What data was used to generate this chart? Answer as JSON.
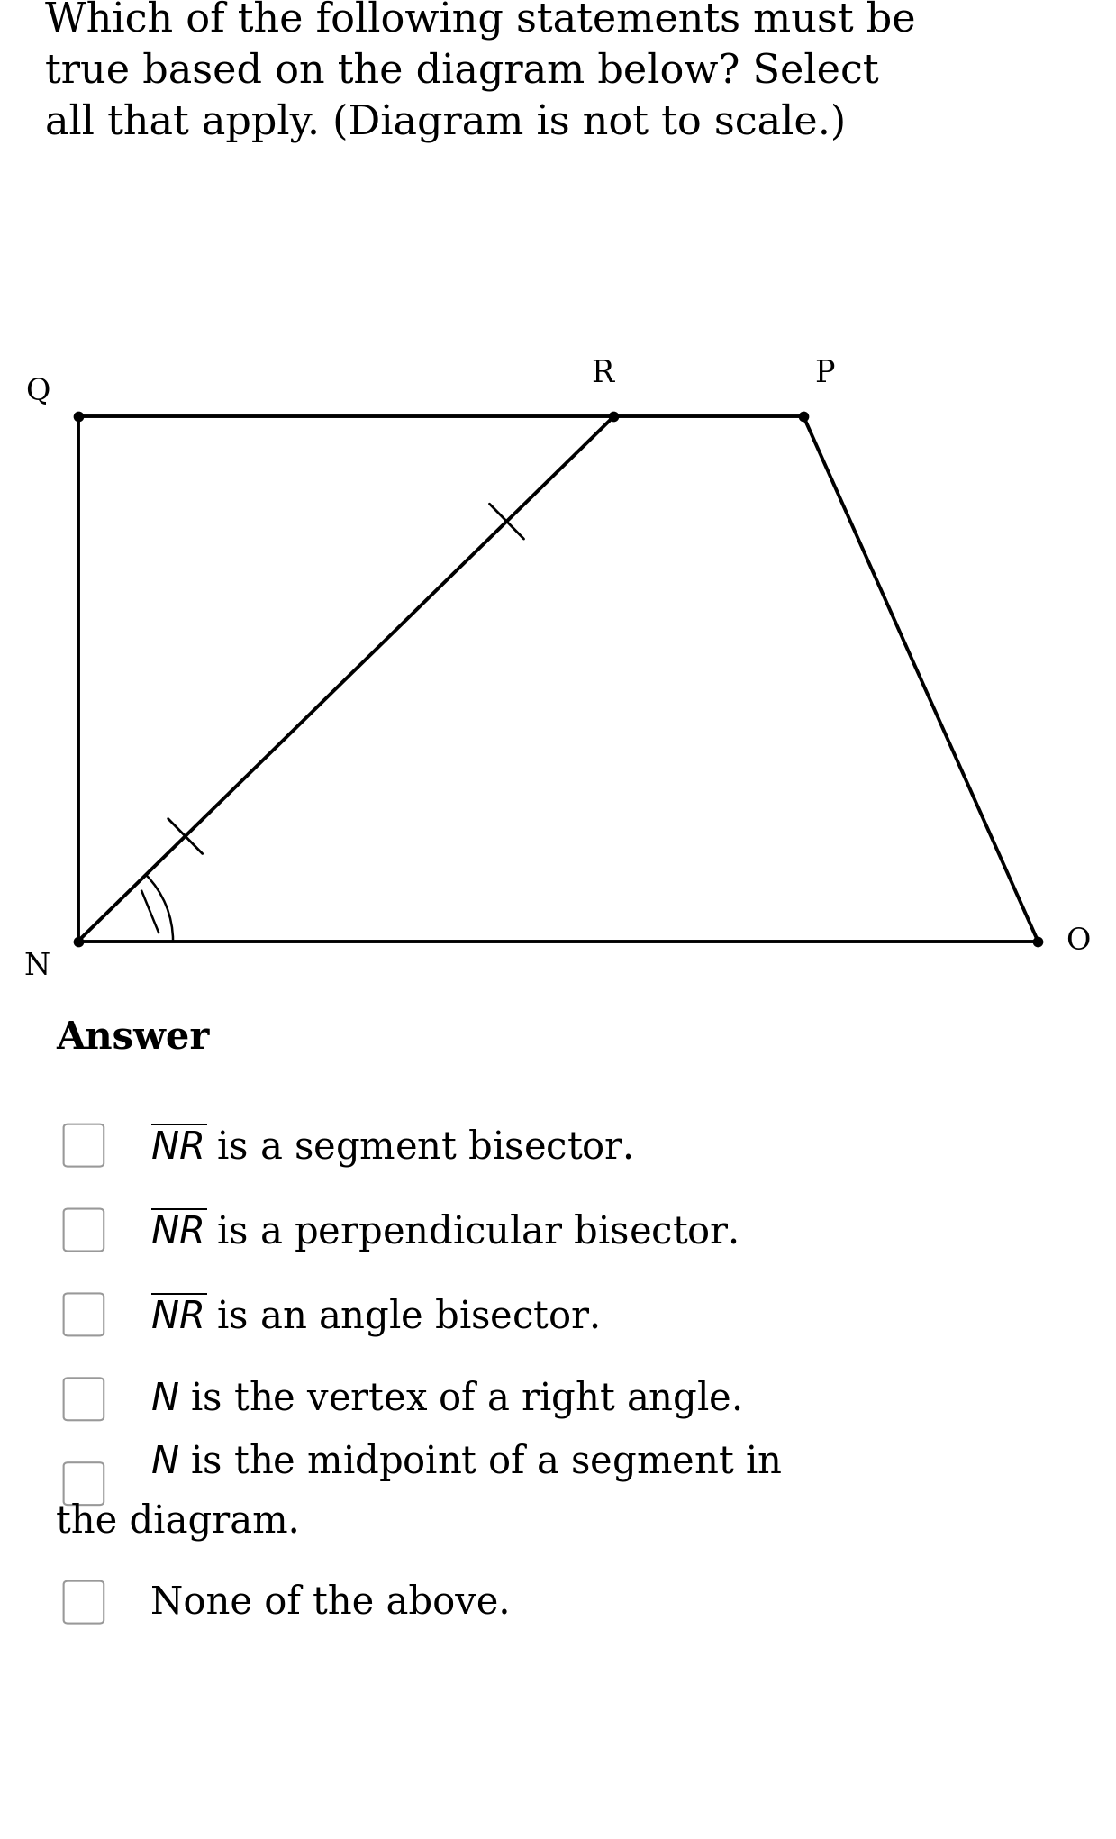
{
  "bg_color": "#ffffff",
  "fig_width": 12.39,
  "fig_height": 20.41,
  "question_text": "Which of the following statements must be\ntrue based on the diagram below? Select\nall that apply. (Diagram is not to scale.)",
  "answer_label": "Answer",
  "choices": [
    "$\\overline{NR}$ is a segment bisector.",
    "$\\overline{NR}$ is a perpendicular bisector.",
    "$\\overline{NR}$ is an angle bisector.",
    "$N$ is the vertex of a right angle.",
    "$N$ is the midpoint of a segment in\nthe diagram.",
    "None of the above."
  ],
  "question_fontsize": 32,
  "answer_fontsize": 30,
  "choice_fontsize": 30,
  "label_fontsize": 24
}
